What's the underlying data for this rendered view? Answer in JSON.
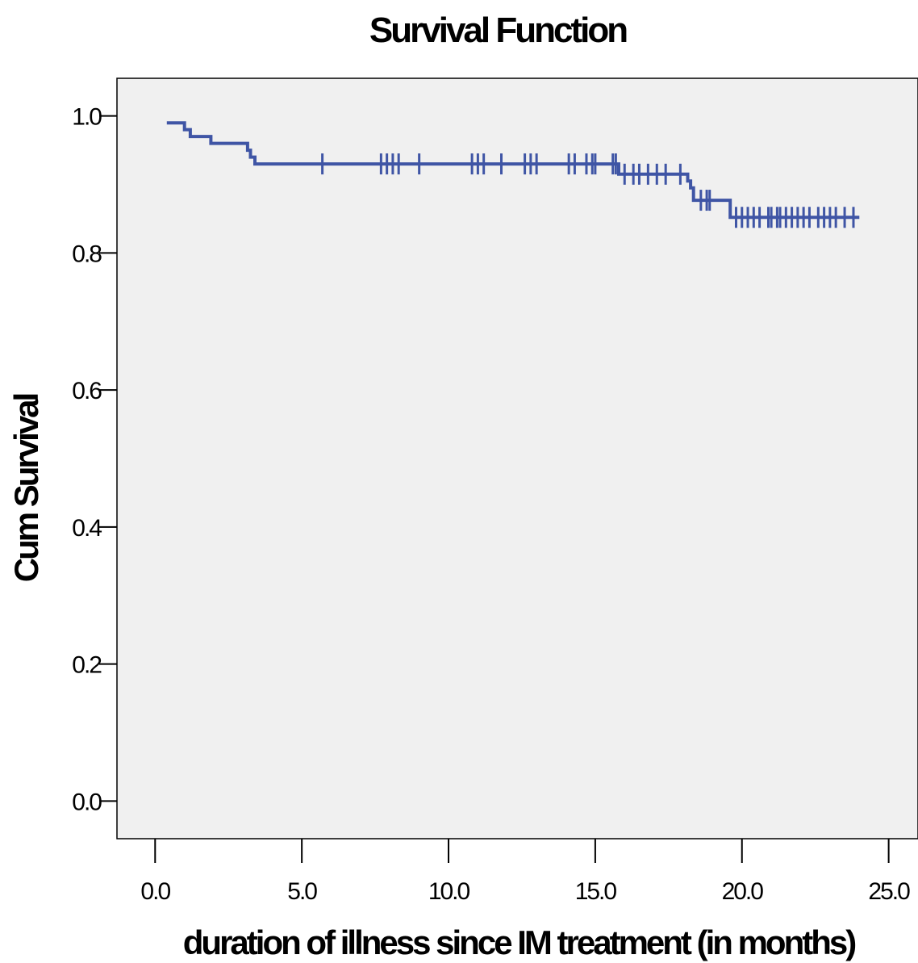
{
  "chart_data": {
    "type": "line",
    "title": "Survival Function",
    "xlabel": "duration of illness since IM treatment (in months)",
    "ylabel": "Cum Survival",
    "xlim": [
      -1.3,
      26.0
    ],
    "ylim": [
      -0.055,
      1.055
    ],
    "x_ticks": [
      0.0,
      5.0,
      10.0,
      15.0,
      20.0,
      25.0
    ],
    "x_tick_labels": [
      "0.0",
      "5.0",
      "10.0",
      "15.0",
      "20.0",
      "25.0"
    ],
    "y_ticks": [
      0.0,
      0.2,
      0.4,
      0.6,
      0.8,
      1.0
    ],
    "y_tick_labels": [
      "0.0",
      "0.2",
      "0.4",
      "0.6",
      "0.8",
      "1.0"
    ],
    "grid": false,
    "series": [
      {
        "step": "post",
        "x": [
          0.4,
          1.0,
          1.2,
          1.9,
          3.15,
          3.25,
          3.4,
          15.8,
          18.15,
          18.25,
          18.35,
          19.0,
          19.6,
          24.0
        ],
        "y": [
          0.99,
          0.98,
          0.97,
          0.96,
          0.95,
          0.94,
          0.93,
          0.915,
          0.905,
          0.895,
          0.877,
          0.877,
          0.852,
          0.852
        ],
        "censored": [
          {
            "x": 5.7,
            "y": 0.93
          },
          {
            "x": 7.7,
            "y": 0.93
          },
          {
            "x": 7.9,
            "y": 0.93
          },
          {
            "x": 8.1,
            "y": 0.93
          },
          {
            "x": 8.3,
            "y": 0.93
          },
          {
            "x": 9.0,
            "y": 0.93
          },
          {
            "x": 10.8,
            "y": 0.93
          },
          {
            "x": 11.0,
            "y": 0.93
          },
          {
            "x": 11.2,
            "y": 0.93
          },
          {
            "x": 11.8,
            "y": 0.93
          },
          {
            "x": 12.6,
            "y": 0.93
          },
          {
            "x": 12.8,
            "y": 0.93
          },
          {
            "x": 13.0,
            "y": 0.93
          },
          {
            "x": 14.1,
            "y": 0.93
          },
          {
            "x": 14.3,
            "y": 0.93
          },
          {
            "x": 14.7,
            "y": 0.93
          },
          {
            "x": 14.9,
            "y": 0.93
          },
          {
            "x": 15.0,
            "y": 0.93
          },
          {
            "x": 15.6,
            "y": 0.93
          },
          {
            "x": 15.7,
            "y": 0.93
          },
          {
            "x": 16.0,
            "y": 0.915
          },
          {
            "x": 16.3,
            "y": 0.915
          },
          {
            "x": 16.5,
            "y": 0.915
          },
          {
            "x": 16.8,
            "y": 0.915
          },
          {
            "x": 17.1,
            "y": 0.915
          },
          {
            "x": 17.4,
            "y": 0.915
          },
          {
            "x": 17.9,
            "y": 0.915
          },
          {
            "x": 18.6,
            "y": 0.877
          },
          {
            "x": 18.8,
            "y": 0.877
          },
          {
            "x": 18.9,
            "y": 0.877
          },
          {
            "x": 19.8,
            "y": 0.852
          },
          {
            "x": 20.0,
            "y": 0.852
          },
          {
            "x": 20.2,
            "y": 0.852
          },
          {
            "x": 20.4,
            "y": 0.852
          },
          {
            "x": 20.6,
            "y": 0.852
          },
          {
            "x": 20.9,
            "y": 0.852
          },
          {
            "x": 21.0,
            "y": 0.852
          },
          {
            "x": 21.2,
            "y": 0.852
          },
          {
            "x": 21.3,
            "y": 0.852
          },
          {
            "x": 21.5,
            "y": 0.852
          },
          {
            "x": 21.7,
            "y": 0.852
          },
          {
            "x": 21.9,
            "y": 0.852
          },
          {
            "x": 22.1,
            "y": 0.852
          },
          {
            "x": 22.3,
            "y": 0.852
          },
          {
            "x": 22.6,
            "y": 0.852
          },
          {
            "x": 22.8,
            "y": 0.852
          },
          {
            "x": 23.0,
            "y": 0.852
          },
          {
            "x": 23.2,
            "y": 0.852
          },
          {
            "x": 23.5,
            "y": 0.852
          },
          {
            "x": 23.8,
            "y": 0.852
          }
        ]
      }
    ],
    "colors": {
      "line": "#3f55a5",
      "plot_background": "#f0f0f0",
      "axis": "#000000",
      "page_background": "#ffffff"
    }
  }
}
